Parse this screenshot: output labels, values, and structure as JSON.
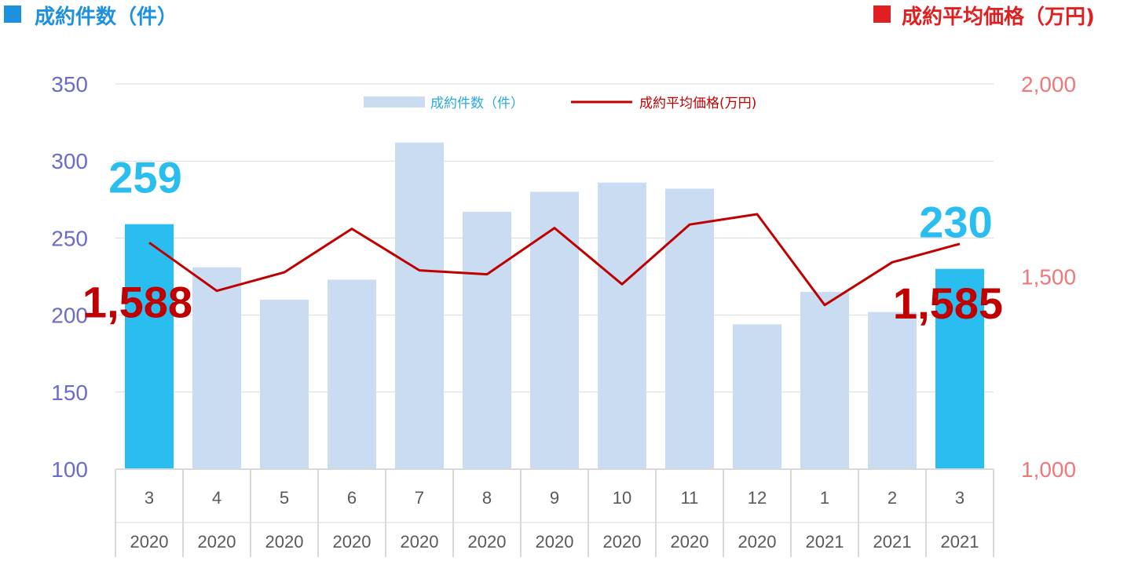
{
  "header": {
    "left_title": "成約件数（件）",
    "right_title": "成約平均価格（万円)"
  },
  "legend": {
    "bar_label": "成約件数（件）",
    "line_label": "成約平均価格(万円)"
  },
  "colors": {
    "bar_default": "#c9dcf2",
    "bar_highlight": "#29bdf0",
    "line": "#c00000",
    "left_axis_text": "#6b6bc8",
    "right_axis_text": "#f07878",
    "header_left": "#1e90e0",
    "header_right": "#e02020",
    "grid": "#d9d9d9"
  },
  "chart_data": {
    "type": "bar",
    "categories": [
      {
        "month": "3",
        "year": "2020"
      },
      {
        "month": "4",
        "year": "2020"
      },
      {
        "month": "5",
        "year": "2020"
      },
      {
        "month": "6",
        "year": "2020"
      },
      {
        "month": "7",
        "year": "2020"
      },
      {
        "month": "8",
        "year": "2020"
      },
      {
        "month": "9",
        "year": "2020"
      },
      {
        "month": "10",
        "year": "2020"
      },
      {
        "month": "11",
        "year": "2020"
      },
      {
        "month": "12",
        "year": "2020"
      },
      {
        "month": "1",
        "year": "2021"
      },
      {
        "month": "2",
        "year": "2021"
      },
      {
        "month": "3",
        "year": "2021"
      }
    ],
    "series": [
      {
        "name": "成約件数（件）",
        "type": "bar",
        "axis": "left",
        "values": [
          259,
          231,
          210,
          223,
          312,
          267,
          280,
          286,
          282,
          194,
          215,
          202,
          230
        ],
        "highlight": [
          true,
          false,
          false,
          false,
          false,
          false,
          false,
          false,
          false,
          false,
          false,
          false,
          true
        ]
      },
      {
        "name": "成約平均価格(万円)",
        "type": "line",
        "axis": "right",
        "values": [
          1588,
          1463,
          1511,
          1624,
          1516,
          1506,
          1626,
          1480,
          1635,
          1662,
          1426,
          1537,
          1585
        ]
      }
    ],
    "y_left": {
      "min": 100,
      "max": 350,
      "ticks": [
        "100",
        "150",
        "200",
        "250",
        "300",
        "350"
      ]
    },
    "y_right": {
      "min": 1000,
      "max": 2000,
      "ticks": [
        "1,000",
        "1,500",
        "2,000"
      ]
    },
    "grid": true,
    "legend_position": "top-center",
    "annotations": [
      {
        "text": "259",
        "kind": "count",
        "index": 0
      },
      {
        "text": "1,588",
        "kind": "price",
        "index": 0
      },
      {
        "text": "230",
        "kind": "count",
        "index": 12
      },
      {
        "text": "1,585",
        "kind": "price",
        "index": 12
      }
    ]
  }
}
